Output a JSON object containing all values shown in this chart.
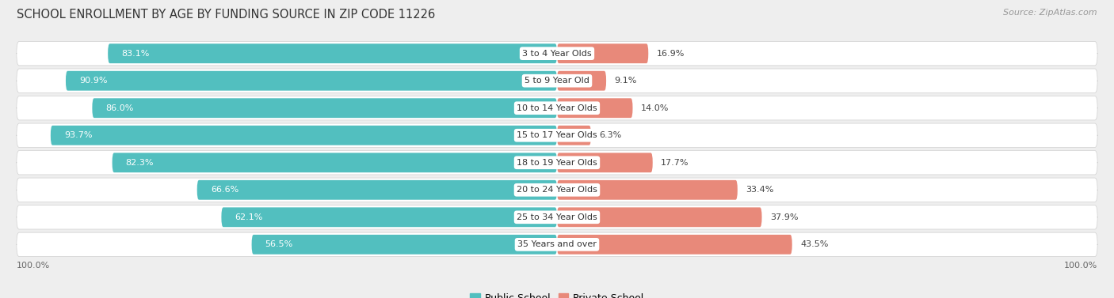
{
  "title": "SCHOOL ENROLLMENT BY AGE BY FUNDING SOURCE IN ZIP CODE 11226",
  "source": "Source: ZipAtlas.com",
  "categories": [
    "3 to 4 Year Olds",
    "5 to 9 Year Old",
    "10 to 14 Year Olds",
    "15 to 17 Year Olds",
    "18 to 19 Year Olds",
    "20 to 24 Year Olds",
    "25 to 34 Year Olds",
    "35 Years and over"
  ],
  "public_values": [
    83.1,
    90.9,
    86.0,
    93.7,
    82.3,
    66.6,
    62.1,
    56.5
  ],
  "private_values": [
    16.9,
    9.1,
    14.0,
    6.3,
    17.7,
    33.4,
    37.9,
    43.5
  ],
  "public_color": "#52BFBF",
  "private_color": "#E8897A",
  "private_color_light": "#EFA898",
  "bg_color": "#EEEEEE",
  "row_bg_color": "#E2E2E2",
  "title_fontsize": 10.5,
  "source_fontsize": 8,
  "label_fontsize": 8,
  "bar_label_fontsize": 8,
  "axis_label_fontsize": 8,
  "legend_fontsize": 9
}
